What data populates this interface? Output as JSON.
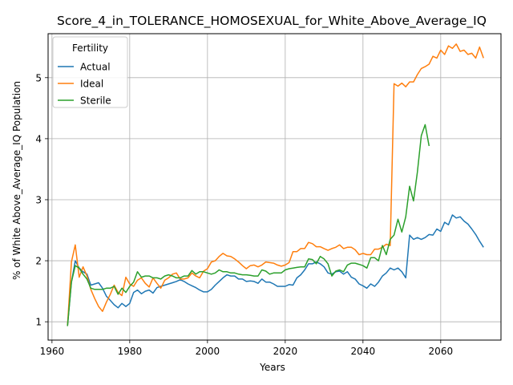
{
  "chart_data": {
    "type": "line",
    "title": "Score_4_in_TOLERANCE_HOMOSEXUAL_for_White_Above_Average_IQ",
    "xlabel": "Years",
    "ylabel": "% of White Above_Average_IQ Population",
    "xlim": [
      1959,
      2075.5
    ],
    "ylim": [
      0.7,
      5.72
    ],
    "xticks": [
      1960,
      1980,
      2000,
      2020,
      2040,
      2060
    ],
    "yticks": [
      1,
      2,
      3,
      4,
      5
    ],
    "grid": true,
    "legend": {
      "title": "Fertility",
      "position": "top-left"
    },
    "series": [
      {
        "name": "Actual",
        "color": "#1f77b4",
        "points": [
          [
            1964,
            0.93
          ],
          [
            1965,
            1.65
          ],
          [
            1966,
            2.0
          ],
          [
            1967,
            1.88
          ],
          [
            1968,
            1.82
          ],
          [
            1969,
            1.78
          ],
          [
            1970,
            1.6
          ],
          [
            1971,
            1.62
          ],
          [
            1972,
            1.64
          ],
          [
            1973,
            1.55
          ],
          [
            1974,
            1.42
          ],
          [
            1975,
            1.35
          ],
          [
            1976,
            1.28
          ],
          [
            1977,
            1.23
          ],
          [
            1978,
            1.3
          ],
          [
            1979,
            1.25
          ],
          [
            1980,
            1.3
          ],
          [
            1981,
            1.48
          ],
          [
            1982,
            1.52
          ],
          [
            1983,
            1.46
          ],
          [
            1984,
            1.5
          ],
          [
            1985,
            1.52
          ],
          [
            1986,
            1.47
          ],
          [
            1987,
            1.56
          ],
          [
            1988,
            1.58
          ],
          [
            1989,
            1.6
          ],
          [
            1990,
            1.62
          ],
          [
            1991,
            1.64
          ],
          [
            1992,
            1.66
          ],
          [
            1993,
            1.69
          ],
          [
            1994,
            1.66
          ],
          [
            1995,
            1.62
          ],
          [
            1996,
            1.59
          ],
          [
            1997,
            1.56
          ],
          [
            1998,
            1.52
          ],
          [
            1999,
            1.49
          ],
          [
            2000,
            1.49
          ],
          [
            2001,
            1.53
          ],
          [
            2002,
            1.6
          ],
          [
            2003,
            1.66
          ],
          [
            2004,
            1.72
          ],
          [
            2005,
            1.77
          ],
          [
            2006,
            1.75
          ],
          [
            2007,
            1.75
          ],
          [
            2008,
            1.7
          ],
          [
            2009,
            1.7
          ],
          [
            2010,
            1.66
          ],
          [
            2011,
            1.67
          ],
          [
            2012,
            1.66
          ],
          [
            2013,
            1.63
          ],
          [
            2014,
            1.7
          ],
          [
            2015,
            1.65
          ],
          [
            2016,
            1.65
          ],
          [
            2017,
            1.62
          ],
          [
            2018,
            1.58
          ],
          [
            2019,
            1.58
          ],
          [
            2020,
            1.58
          ],
          [
            2021,
            1.61
          ],
          [
            2022,
            1.6
          ],
          [
            2023,
            1.72
          ],
          [
            2024,
            1.77
          ],
          [
            2025,
            1.85
          ],
          [
            2026,
            1.95
          ],
          [
            2027,
            1.95
          ],
          [
            2028,
            1.98
          ],
          [
            2029,
            1.95
          ],
          [
            2030,
            1.9
          ],
          [
            2031,
            1.8
          ],
          [
            2032,
            1.78
          ],
          [
            2033,
            1.82
          ],
          [
            2034,
            1.83
          ],
          [
            2035,
            1.78
          ],
          [
            2036,
            1.82
          ],
          [
            2037,
            1.73
          ],
          [
            2038,
            1.7
          ],
          [
            2039,
            1.62
          ],
          [
            2040,
            1.59
          ],
          [
            2041,
            1.55
          ],
          [
            2042,
            1.62
          ],
          [
            2043,
            1.58
          ],
          [
            2044,
            1.65
          ],
          [
            2045,
            1.75
          ],
          [
            2046,
            1.8
          ],
          [
            2047,
            1.88
          ],
          [
            2048,
            1.85
          ],
          [
            2049,
            1.88
          ],
          [
            2050,
            1.82
          ],
          [
            2051,
            1.72
          ],
          [
            2052,
            2.42
          ],
          [
            2053,
            2.35
          ],
          [
            2054,
            2.38
          ],
          [
            2055,
            2.35
          ],
          [
            2056,
            2.38
          ],
          [
            2057,
            2.43
          ],
          [
            2058,
            2.42
          ],
          [
            2059,
            2.52
          ],
          [
            2060,
            2.48
          ],
          [
            2061,
            2.63
          ],
          [
            2062,
            2.59
          ],
          [
            2063,
            2.75
          ],
          [
            2064,
            2.7
          ],
          [
            2065,
            2.72
          ],
          [
            2066,
            2.65
          ],
          [
            2067,
            2.6
          ],
          [
            2068,
            2.52
          ],
          [
            2069,
            2.43
          ],
          [
            2070,
            2.32
          ],
          [
            2071,
            2.22
          ]
        ]
      },
      {
        "name": "Ideal",
        "color": "#ff7f0e",
        "points": [
          [
            1964,
            0.93
          ],
          [
            1965,
            1.98
          ],
          [
            1966,
            2.26
          ],
          [
            1967,
            1.73
          ],
          [
            1968,
            1.9
          ],
          [
            1969,
            1.75
          ],
          [
            1970,
            1.53
          ],
          [
            1971,
            1.38
          ],
          [
            1972,
            1.25
          ],
          [
            1973,
            1.17
          ],
          [
            1974,
            1.32
          ],
          [
            1975,
            1.45
          ],
          [
            1976,
            1.6
          ],
          [
            1977,
            1.48
          ],
          [
            1978,
            1.43
          ],
          [
            1979,
            1.73
          ],
          [
            1980,
            1.62
          ],
          [
            1981,
            1.58
          ],
          [
            1982,
            1.68
          ],
          [
            1983,
            1.72
          ],
          [
            1984,
            1.63
          ],
          [
            1985,
            1.57
          ],
          [
            1986,
            1.72
          ],
          [
            1987,
            1.63
          ],
          [
            1988,
            1.55
          ],
          [
            1989,
            1.68
          ],
          [
            1990,
            1.72
          ],
          [
            1991,
            1.78
          ],
          [
            1992,
            1.8
          ],
          [
            1993,
            1.7
          ],
          [
            1994,
            1.7
          ],
          [
            1995,
            1.72
          ],
          [
            1996,
            1.8
          ],
          [
            1997,
            1.75
          ],
          [
            1998,
            1.72
          ],
          [
            1999,
            1.83
          ],
          [
            2000,
            1.87
          ],
          [
            2001,
            1.98
          ],
          [
            2002,
            2.0
          ],
          [
            2003,
            2.07
          ],
          [
            2004,
            2.12
          ],
          [
            2005,
            2.08
          ],
          [
            2006,
            2.07
          ],
          [
            2007,
            2.03
          ],
          [
            2008,
            1.98
          ],
          [
            2009,
            1.92
          ],
          [
            2010,
            1.87
          ],
          [
            2011,
            1.92
          ],
          [
            2012,
            1.93
          ],
          [
            2013,
            1.9
          ],
          [
            2014,
            1.93
          ],
          [
            2015,
            1.98
          ],
          [
            2016,
            1.97
          ],
          [
            2017,
            1.96
          ],
          [
            2018,
            1.93
          ],
          [
            2019,
            1.91
          ],
          [
            2020,
            1.93
          ],
          [
            2021,
            1.97
          ],
          [
            2022,
            2.15
          ],
          [
            2023,
            2.15
          ],
          [
            2024,
            2.2
          ],
          [
            2025,
            2.2
          ],
          [
            2026,
            2.3
          ],
          [
            2027,
            2.28
          ],
          [
            2028,
            2.23
          ],
          [
            2029,
            2.23
          ],
          [
            2030,
            2.2
          ],
          [
            2031,
            2.17
          ],
          [
            2032,
            2.2
          ],
          [
            2033,
            2.22
          ],
          [
            2034,
            2.26
          ],
          [
            2035,
            2.2
          ],
          [
            2036,
            2.22
          ],
          [
            2037,
            2.22
          ],
          [
            2038,
            2.18
          ],
          [
            2039,
            2.1
          ],
          [
            2040,
            2.12
          ],
          [
            2041,
            2.1
          ],
          [
            2042,
            2.1
          ],
          [
            2043,
            2.19
          ],
          [
            2044,
            2.19
          ],
          [
            2045,
            2.22
          ],
          [
            2046,
            2.27
          ],
          [
            2047,
            2.25
          ],
          [
            2048,
            4.9
          ],
          [
            2049,
            4.86
          ],
          [
            2050,
            4.91
          ],
          [
            2051,
            4.85
          ],
          [
            2052,
            4.93
          ],
          [
            2053,
            4.93
          ],
          [
            2054,
            5.05
          ],
          [
            2055,
            5.15
          ],
          [
            2056,
            5.18
          ],
          [
            2057,
            5.22
          ],
          [
            2058,
            5.35
          ],
          [
            2059,
            5.32
          ],
          [
            2060,
            5.45
          ],
          [
            2061,
            5.38
          ],
          [
            2062,
            5.52
          ],
          [
            2063,
            5.48
          ],
          [
            2064,
            5.55
          ],
          [
            2065,
            5.43
          ],
          [
            2066,
            5.45
          ],
          [
            2067,
            5.38
          ],
          [
            2068,
            5.4
          ],
          [
            2069,
            5.32
          ],
          [
            2070,
            5.5
          ],
          [
            2071,
            5.32
          ]
        ]
      },
      {
        "name": "Sterile",
        "color": "#2ca02c",
        "points": [
          [
            1964,
            0.93
          ],
          [
            1965,
            1.65
          ],
          [
            1966,
            1.92
          ],
          [
            1967,
            1.88
          ],
          [
            1968,
            1.78
          ],
          [
            1969,
            1.7
          ],
          [
            1970,
            1.55
          ],
          [
            1971,
            1.53
          ],
          [
            1972,
            1.53
          ],
          [
            1973,
            1.53
          ],
          [
            1974,
            1.55
          ],
          [
            1975,
            1.55
          ],
          [
            1976,
            1.58
          ],
          [
            1977,
            1.45
          ],
          [
            1978,
            1.55
          ],
          [
            1979,
            1.48
          ],
          [
            1980,
            1.58
          ],
          [
            1981,
            1.65
          ],
          [
            1982,
            1.82
          ],
          [
            1983,
            1.73
          ],
          [
            1984,
            1.75
          ],
          [
            1985,
            1.75
          ],
          [
            1986,
            1.72
          ],
          [
            1987,
            1.72
          ],
          [
            1988,
            1.7
          ],
          [
            1989,
            1.75
          ],
          [
            1990,
            1.77
          ],
          [
            1991,
            1.75
          ],
          [
            1992,
            1.72
          ],
          [
            1993,
            1.72
          ],
          [
            1994,
            1.75
          ],
          [
            1995,
            1.75
          ],
          [
            1996,
            1.84
          ],
          [
            1997,
            1.78
          ],
          [
            1998,
            1.82
          ],
          [
            1999,
            1.82
          ],
          [
            2000,
            1.8
          ],
          [
            2001,
            1.78
          ],
          [
            2002,
            1.8
          ],
          [
            2003,
            1.85
          ],
          [
            2004,
            1.82
          ],
          [
            2005,
            1.82
          ],
          [
            2006,
            1.8
          ],
          [
            2007,
            1.8
          ],
          [
            2008,
            1.78
          ],
          [
            2009,
            1.77
          ],
          [
            2010,
            1.77
          ],
          [
            2011,
            1.76
          ],
          [
            2012,
            1.75
          ],
          [
            2013,
            1.75
          ],
          [
            2014,
            1.85
          ],
          [
            2015,
            1.83
          ],
          [
            2016,
            1.78
          ],
          [
            2017,
            1.8
          ],
          [
            2018,
            1.8
          ],
          [
            2019,
            1.8
          ],
          [
            2020,
            1.85
          ],
          [
            2021,
            1.87
          ],
          [
            2022,
            1.88
          ],
          [
            2023,
            1.89
          ],
          [
            2024,
            1.9
          ],
          [
            2025,
            1.9
          ],
          [
            2026,
            2.03
          ],
          [
            2027,
            2.02
          ],
          [
            2028,
            1.95
          ],
          [
            2029,
            2.07
          ],
          [
            2030,
            2.03
          ],
          [
            2031,
            1.95
          ],
          [
            2032,
            1.75
          ],
          [
            2033,
            1.83
          ],
          [
            2034,
            1.85
          ],
          [
            2035,
            1.82
          ],
          [
            2036,
            1.93
          ],
          [
            2037,
            1.96
          ],
          [
            2038,
            1.96
          ],
          [
            2039,
            1.94
          ],
          [
            2040,
            1.92
          ],
          [
            2041,
            1.88
          ],
          [
            2042,
            2.05
          ],
          [
            2043,
            2.05
          ],
          [
            2044,
            2.0
          ],
          [
            2045,
            2.25
          ],
          [
            2046,
            2.1
          ],
          [
            2047,
            2.35
          ],
          [
            2048,
            2.42
          ],
          [
            2049,
            2.68
          ],
          [
            2050,
            2.47
          ],
          [
            2051,
            2.72
          ],
          [
            2052,
            3.22
          ],
          [
            2053,
            2.98
          ],
          [
            2054,
            3.45
          ],
          [
            2055,
            4.05
          ],
          [
            2056,
            4.23
          ],
          [
            2057,
            3.88
          ]
        ]
      }
    ]
  }
}
